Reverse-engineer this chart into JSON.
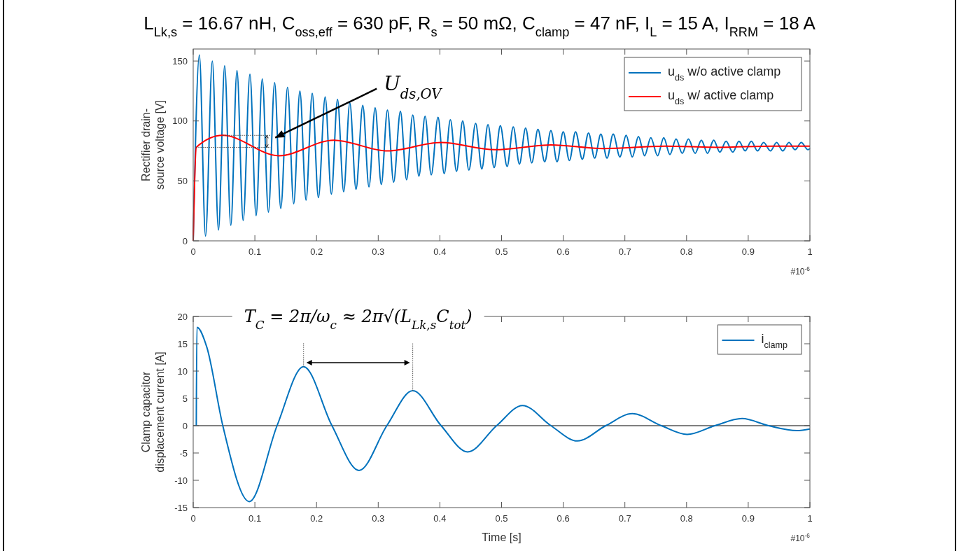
{
  "chart_data": [
    {
      "type": "line",
      "title": "L$_{Lk,s}$ = 16.67 nH, C$_{oss,eff}$ = 630 pF, R$_{s}$ = 50 mΩ, C$_{clamp}$ = 47 nF, I$_{L}$ = 15 A, I$_{RRM}$ = 18 A",
      "ylabel": "Rectifier drain-source voltage [V]",
      "xlim": [
        0,
        1
      ],
      "xticks": [
        0,
        0.1,
        0.2,
        0.3,
        0.4,
        0.5,
        0.6,
        0.7,
        0.8,
        0.9,
        1
      ],
      "ylim": [
        0,
        160
      ],
      "yticks": [
        0,
        50,
        100,
        150
      ],
      "legend": "top right",
      "grid": false,
      "annotations": [
        {
          "text": "U$_{ds,OV}$",
          "x": 0.133,
          "y": 86
        },
        "#10$^{-6}$"
      ],
      "series": [
        {
          "name": "u$_{ds}$ w/o active clamp",
          "color": "#0072bd",
          "x": [
            0,
            0.01,
            0.02,
            0.031,
            0.041,
            0.051,
            0.061,
            0.071,
            0.081,
            0.092,
            0.102,
            0.112,
            0.122,
            0.132,
            0.142,
            0.153,
            0.163,
            0.173,
            0.183,
            0.193,
            0.203,
            0.214,
            0.224,
            0.234,
            0.244,
            0.254,
            0.264,
            0.275,
            0.285,
            0.295,
            0.305,
            0.315,
            0.325,
            0.336,
            0.346,
            0.356,
            0.366,
            0.376,
            0.386,
            0.397,
            0.407,
            0.417,
            0.427,
            0.437,
            0.447,
            0.458,
            0.468,
            0.478,
            0.488,
            0.498,
            0.509,
            0.519,
            0.529,
            0.539,
            0.549,
            0.559,
            0.57,
            0.58,
            0.59,
            0.6,
            0.61,
            0.62,
            0.631,
            0.641,
            0.651,
            0.661,
            0.671,
            0.681,
            0.692,
            0.702,
            0.712,
            0.722,
            0.732,
            0.742,
            0.753,
            0.763,
            0.773,
            0.783,
            0.793,
            0.803,
            0.814,
            0.824,
            0.834,
            0.844,
            0.854,
            0.864,
            0.875,
            0.885,
            0.895,
            0.905,
            0.915,
            0.925,
            0.936,
            0.946,
            0.956,
            0.966,
            0.976,
            0.986,
            0.997,
            1
          ],
          "values": [
            0,
            155,
            4,
            150,
            9,
            146,
            13,
            142,
            17,
            139,
            21,
            135,
            24,
            132,
            27,
            128,
            31,
            125,
            34,
            123,
            36,
            120,
            39,
            118,
            41,
            115,
            43,
            113,
            45,
            111,
            47,
            109,
            49,
            108,
            51,
            105,
            54,
            104,
            55,
            103,
            56,
            101,
            58,
            100,
            59,
            98,
            60,
            97,
            61,
            96,
            62,
            95,
            64,
            94,
            65,
            93,
            66,
            92,
            66,
            91,
            67,
            91,
            68,
            90,
            69,
            89,
            69,
            89,
            70,
            88,
            70,
            87,
            71,
            86,
            71,
            86,
            72,
            85,
            73,
            85,
            73,
            84,
            73,
            84,
            74,
            83,
            74,
            83,
            75,
            83,
            75,
            82,
            75,
            82,
            75,
            82,
            76,
            82,
            76,
            77
          ]
        },
        {
          "name": "u$_{ds}$ w/ active clamp",
          "color": "#ff0000",
          "x": [
            0,
            0.005,
            0.048,
            0.139,
            0.228,
            0.315,
            0.402,
            0.489,
            0.58,
            0.665,
            0.765,
            0.85,
            0.94,
            1
          ],
          "values": [
            0,
            78,
            88,
            71,
            84,
            75,
            82,
            76,
            80,
            77,
            79,
            78,
            79,
            79
          ]
        }
      ]
    },
    {
      "type": "line",
      "ylabel": "Clamp capacitor displacement current [A]",
      "xlabel": "Time [s]",
      "xlim": [
        0,
        1
      ],
      "xticks": [
        0,
        0.1,
        0.2,
        0.3,
        0.4,
        0.5,
        0.6,
        0.7,
        0.8,
        0.9,
        1
      ],
      "ylim": [
        -15,
        20
      ],
      "yticks": [
        -15,
        -10,
        -5,
        0,
        5,
        10,
        15,
        20
      ],
      "legend": "top right",
      "grid": false,
      "ref_lines": [
        {
          "axis": "y",
          "value": 0,
          "color": "#555555"
        }
      ],
      "annotations": [
        "T$_{C}$ = 2π/ω$_{c}$ ≈ 2π√(L$_{Lk,s}$C$_{tot}$)",
        "#10$^{-6}$"
      ],
      "series": [
        {
          "name": "i$_{clamp}$",
          "color": "#0072bd",
          "x": [
            0.005,
            0.006,
            0.022,
            0.048,
            0.091,
            0.136,
            0.179,
            0.225,
            0.269,
            0.314,
            0.356,
            0.402,
            0.445,
            0.492,
            0.534,
            0.58,
            0.623,
            0.669,
            0.712,
            0.759,
            0.801,
            0.846,
            0.89,
            0.933,
            0.979,
            1
          ],
          "values": [
            0,
            18,
            14.4,
            0,
            -13.9,
            0,
            10.8,
            0,
            -8.2,
            0,
            6.4,
            0,
            -4.8,
            0,
            3.7,
            0,
            -2.8,
            0,
            2.2,
            0,
            -1.6,
            0,
            1.3,
            0,
            -0.9,
            -0.6
          ]
        }
      ]
    }
  ]
}
